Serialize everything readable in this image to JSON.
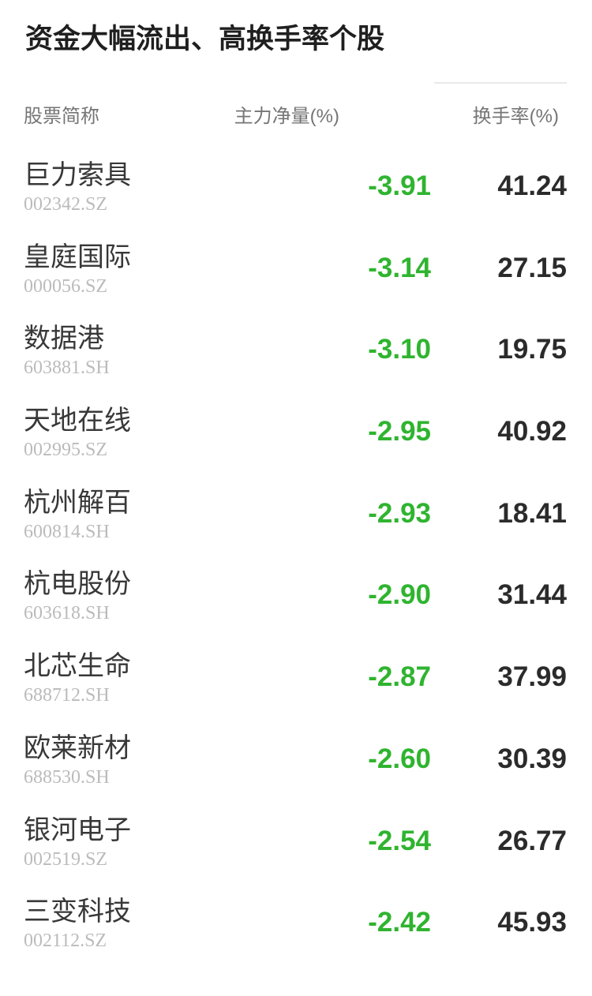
{
  "chart_data": {
    "type": "table",
    "title": "资金大幅流出、高换手率个股",
    "columns": [
      "股票简称",
      "主力净量(%)",
      "换手率(%)"
    ],
    "rows": [
      {
        "name": "巨力索具",
        "code": "002342.SZ",
        "main_net": "-3.91",
        "turnover": "41.24"
      },
      {
        "name": "皇庭国际",
        "code": "000056.SZ",
        "main_net": "-3.14",
        "turnover": "27.15"
      },
      {
        "name": "数据港",
        "code": "603881.SH",
        "main_net": "-3.10",
        "turnover": "19.75"
      },
      {
        "name": "天地在线",
        "code": "002995.SZ",
        "main_net": "-2.95",
        "turnover": "40.92"
      },
      {
        "name": "杭州解百",
        "code": "600814.SH",
        "main_net": "-2.93",
        "turnover": "18.41"
      },
      {
        "name": "杭电股份",
        "code": "603618.SH",
        "main_net": "-2.90",
        "turnover": "31.44"
      },
      {
        "name": "北芯生命",
        "code": "688712.SH",
        "main_net": "-2.87",
        "turnover": "37.99"
      },
      {
        "name": "欧莱新材",
        "code": "688530.SH",
        "main_net": "-2.60",
        "turnover": "30.39"
      },
      {
        "name": "银河电子",
        "code": "002519.SZ",
        "main_net": "-2.54",
        "turnover": "26.77"
      },
      {
        "name": "三变科技",
        "code": "002112.SZ",
        "main_net": "-2.42",
        "turnover": "45.93"
      }
    ],
    "layout": {
      "grid": "off",
      "legend": "none"
    }
  },
  "header": {
    "col_name": "股票简称",
    "col_main_net": "主力净量(%)",
    "col_turnover": "换手率(%)"
  },
  "colors": {
    "negative_green": "#2fb42f",
    "value_black": "#2b2b2b",
    "name_gray": "#383838",
    "code_gray": "#bbbbbb",
    "header_gray": "#757575",
    "divider": "#e9e9e9",
    "background": "#ffffff"
  }
}
